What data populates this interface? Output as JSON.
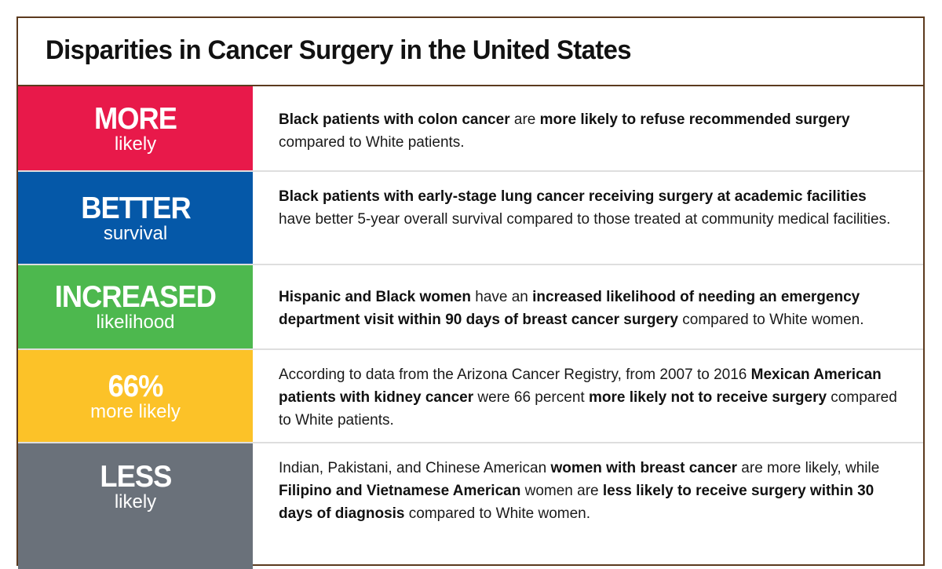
{
  "title": "Disparities in Cancer Surgery in the United States",
  "colors": {
    "border": "#5c3a1e",
    "more": "#e8194a",
    "better": "#0558a8",
    "increased": "#4db84e",
    "percent": "#fcc228",
    "less": "#6a717a"
  },
  "rows": [
    {
      "big": "MORE",
      "small": "likely",
      "text": [
        {
          "b": true,
          "t": "Black patients with colon cancer"
        },
        {
          "b": false,
          "t": " are "
        },
        {
          "b": true,
          "t": "more likely to refuse recommended surgery"
        },
        {
          "b": false,
          "t": " compared to White patients."
        }
      ]
    },
    {
      "big": "BETTER",
      "small": "survival",
      "text": [
        {
          "b": true,
          "t": "Black patients with early-stage lung cancer receiving surgery at academic facilities"
        },
        {
          "b": false,
          "t": " have better 5-year overall survival compared to those treated at community medical facilities."
        }
      ]
    },
    {
      "big": "INCREASED",
      "small": "likelihood",
      "text": [
        {
          "b": true,
          "t": "Hispanic and Black women"
        },
        {
          "b": false,
          "t": " have an "
        },
        {
          "b": true,
          "t": "increased likelihood of needing an emergency department visit within 90 days of breast cancer surgery"
        },
        {
          "b": false,
          "t": " compared to White women."
        }
      ]
    },
    {
      "big": "66%",
      "small": "more likely",
      "text": [
        {
          "b": false,
          "t": "According to data from the Arizona Cancer Registry, from 2007 to 2016 "
        },
        {
          "b": true,
          "t": "Mexican American patients with kidney cancer"
        },
        {
          "b": false,
          "t": " were 66 percent "
        },
        {
          "b": true,
          "t": "more likely not to receive surgery"
        },
        {
          "b": false,
          "t": " compared to White patients."
        }
      ]
    },
    {
      "big": "LESS",
      "small": "likely",
      "text": [
        {
          "b": false,
          "t": "Indian, Pakistani, and Chinese American "
        },
        {
          "b": true,
          "t": "women with breast cancer"
        },
        {
          "b": false,
          "t": " are more likely, while "
        },
        {
          "b": true,
          "t": "Filipino and Vietnamese American"
        },
        {
          "b": false,
          "t": " women are "
        },
        {
          "b": true,
          "t": "less likely to receive surgery within 30 days of diagnosis"
        },
        {
          "b": false,
          "t": " compared to White women."
        }
      ]
    }
  ]
}
